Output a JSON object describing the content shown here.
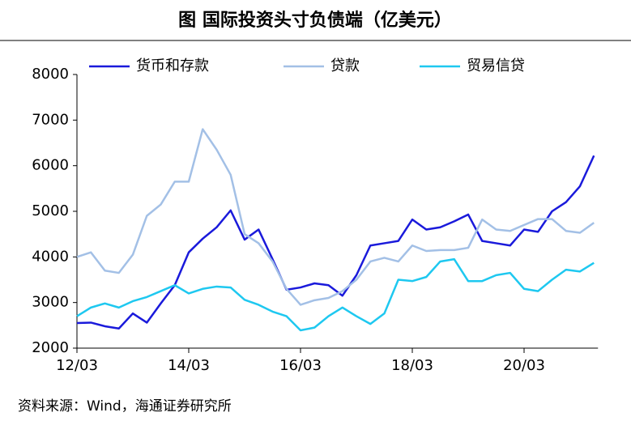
{
  "chart_data": {
    "type": "line",
    "title": "图  国际投资头寸负债端（亿美元）",
    "source": "资料来源：Wind，海通证券研究所",
    "categories": [
      "12/03",
      null,
      null,
      null,
      null,
      null,
      null,
      null,
      "14/03",
      null,
      null,
      null,
      null,
      null,
      null,
      null,
      "16/03",
      null,
      null,
      null,
      null,
      null,
      null,
      null,
      "18/03",
      null,
      null,
      null,
      null,
      null,
      null,
      null,
      "20/03",
      null,
      null,
      null,
      null,
      null
    ],
    "series": [
      {
        "name": "货币和存款",
        "color": "#1a1adb",
        "values": [
          2550,
          2560,
          2480,
          2430,
          2760,
          2560,
          2980,
          3380,
          4100,
          4400,
          4650,
          5020,
          4380,
          4600,
          3950,
          3280,
          3330,
          3420,
          3380,
          3150,
          3600,
          4250,
          4300,
          4350,
          4820,
          4600,
          4650,
          4780,
          4930,
          4350,
          4300,
          4250,
          4600,
          4550,
          5000,
          5200,
          5550,
          6220
        ]
      },
      {
        "name": "贷款",
        "color": "#a3c0e6",
        "values": [
          4000,
          4100,
          3700,
          3650,
          4050,
          4900,
          5150,
          5650,
          5650,
          6800,
          6350,
          5800,
          4500,
          4300,
          3900,
          3300,
          2950,
          3050,
          3100,
          3250,
          3500,
          3900,
          3980,
          3900,
          4250,
          4130,
          4150,
          4150,
          4200,
          4820,
          4600,
          4570,
          4700,
          4830,
          4830,
          4570,
          4530,
          4750
        ]
      },
      {
        "name": "贸易信贷",
        "color": "#1ec8f0",
        "values": [
          2700,
          2890,
          2980,
          2890,
          3030,
          3120,
          3250,
          3380,
          3200,
          3300,
          3350,
          3330,
          3060,
          2950,
          2800,
          2700,
          2390,
          2450,
          2700,
          2890,
          2700,
          2530,
          2760,
          3500,
          3470,
          3560,
          3900,
          3950,
          3470,
          3470,
          3600,
          3650,
          3300,
          3250,
          3500,
          3720,
          3680,
          3870
        ]
      }
    ],
    "ylim": [
      2000,
      8000
    ],
    "yticks": [
      2000,
      3000,
      4000,
      5000,
      6000,
      7000,
      8000
    ]
  }
}
